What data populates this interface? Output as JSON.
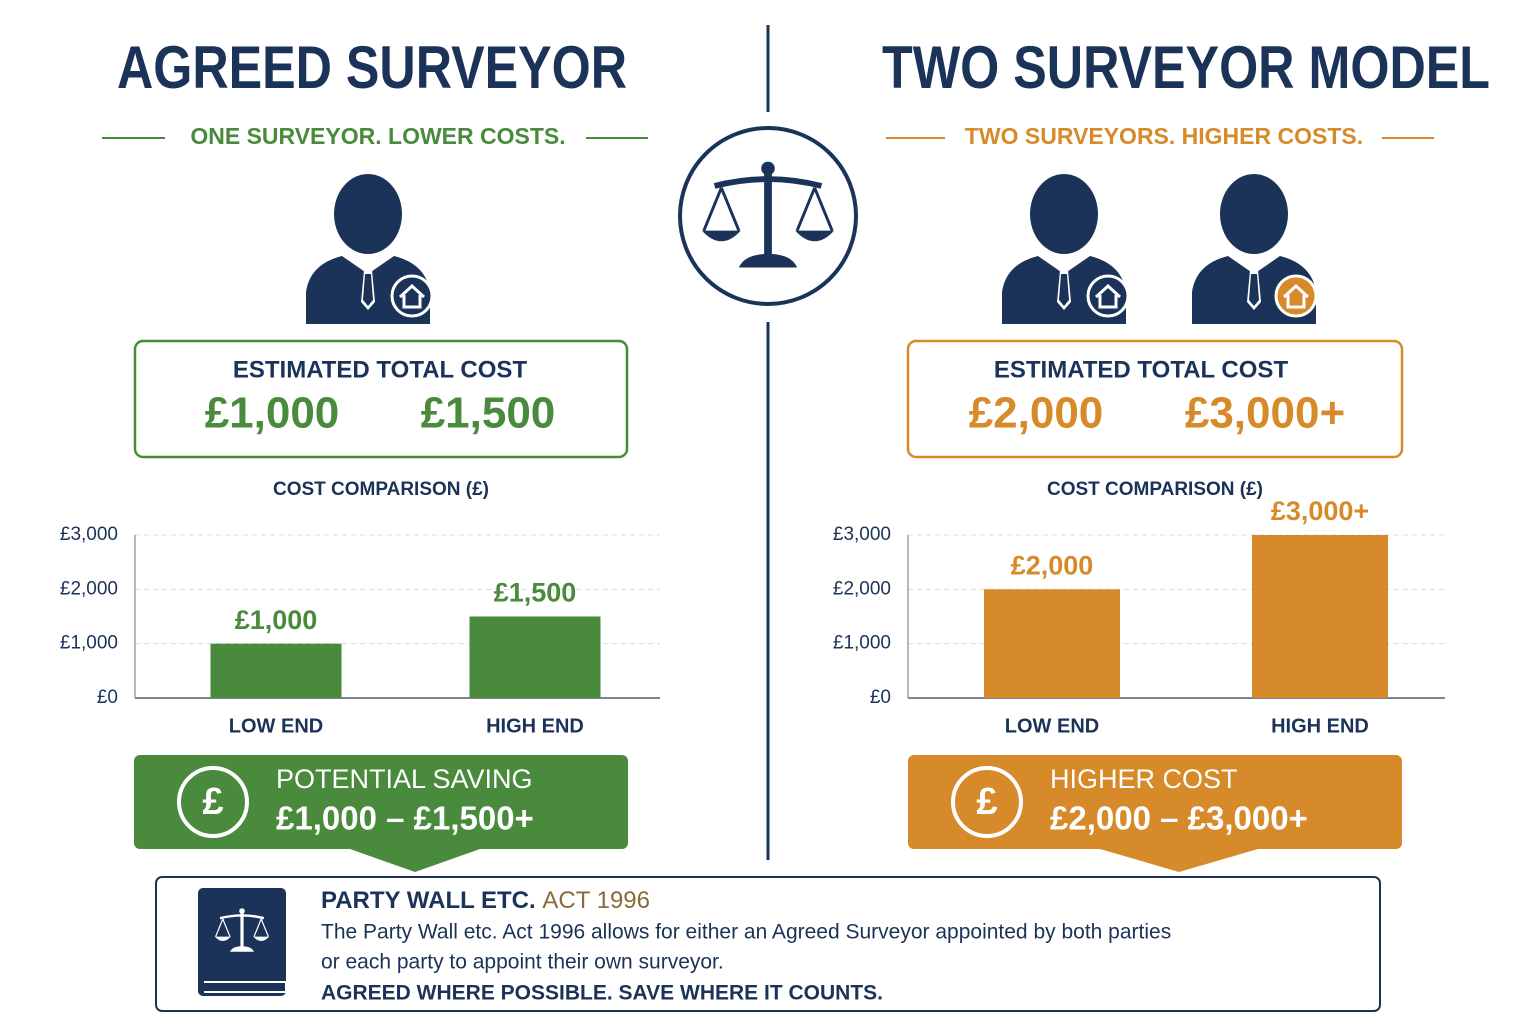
{
  "left": {
    "title": "AGREED SURVEYOR",
    "tagline": "ONE SURVEYOR. LOWER COSTS.",
    "cost_heading": "ESTIMATED TOTAL COST",
    "cost_low": "£1,000",
    "cost_high": "£1,500",
    "banner_icon": "£",
    "banner_title": "POTENTIAL SAVING",
    "banner_value": "£1,000 – £1,500+"
  },
  "right": {
    "title": "TWO SURVEYOR MODEL",
    "tagline": "TWO SURVEYORS. HIGHER COSTS.",
    "cost_heading": "ESTIMATED TOTAL COST",
    "cost_low": "£2,000",
    "cost_high": "£3,000+",
    "banner_icon": "£",
    "banner_title": "HIGHER COST",
    "banner_value": "£2,000 – £3,000+"
  },
  "footer": {
    "title": "PARTY WALL ETC.",
    "title_accent": "ACT 1996",
    "lines": [
      "The Party Wall etc. Act 1996 allows for either an Agreed Surveyor appointed by both parties",
      "or each party to appoint their own surveyor."
    ],
    "tagline": "AGREED WHERE POSSIBLE. SAVE WHERE IT COUNTS."
  },
  "chart_data": [
    {
      "type": "bar",
      "title": "COST COMPARISON (£)",
      "categories": [
        "LOW END",
        "HIGH END"
      ],
      "values": [
        1000,
        1500
      ],
      "value_labels": [
        "£1,000",
        "£1,500"
      ],
      "color": "#4a8a3c",
      "ylim": [
        0,
        3000
      ],
      "yticks": [
        {
          "value": 0,
          "label": "£0"
        },
        {
          "value": 1000,
          "label": "£1,000"
        },
        {
          "value": 2000,
          "label": "£2,000"
        },
        {
          "value": 3000,
          "label": "£3,000"
        }
      ],
      "grid": true
    },
    {
      "type": "bar",
      "title": "COST COMPARISON (£)",
      "categories": [
        "LOW END",
        "HIGH END"
      ],
      "values": [
        2000,
        3000
      ],
      "value_labels": [
        "£2,000",
        "£3,000+"
      ],
      "color": "#d68a2a",
      "ylim": [
        0,
        3000
      ],
      "yticks": [
        {
          "value": 0,
          "label": "£0"
        },
        {
          "value": 1000,
          "label": "£1,000"
        },
        {
          "value": 2000,
          "label": "£2,000"
        },
        {
          "value": 3000,
          "label": "£3,000"
        }
      ],
      "grid": true
    }
  ]
}
